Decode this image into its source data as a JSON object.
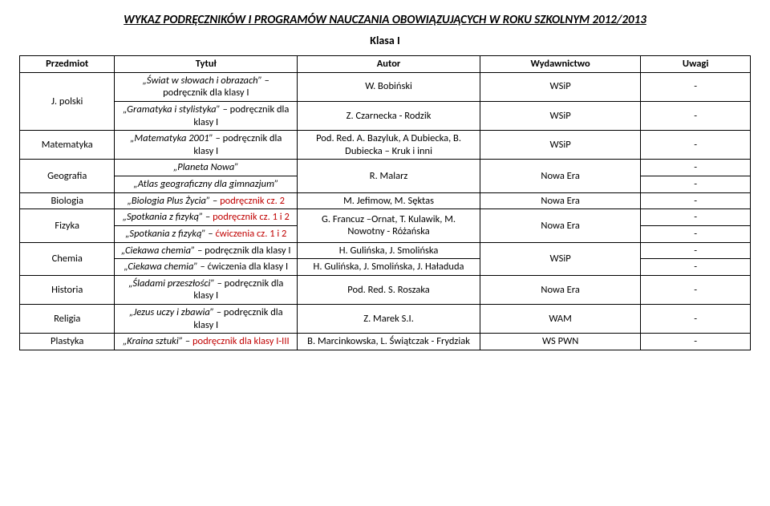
{
  "title": "WYKAZ PODRĘCZNIKÓW I PROGRAMÓW NAUCZANIA OBOWIĄZUJĄCYCH W ROKU SZKOLNYM 2012/2013",
  "subtitle": "Klasa I",
  "headers": {
    "subject": "Przedmiot",
    "title": "Tytuł",
    "author": "Autor",
    "publisher": "Wydawnictwo",
    "notes": "Uwagi"
  },
  "rows": {
    "polski": {
      "subject": "J. polski",
      "t1a": "„Świat w słowach i obrazach” ",
      "t1b": "– podręcznik dla klasy I",
      "a1": "W. Bobiński",
      "p1": "WSiP",
      "n1": "-",
      "t2a": "„Gramatyka i stylistyka”",
      "t2b": " – podręcznik dla klasy I",
      "a2": "Z. Czarnecka - Rodzik",
      "p2": "WSiP",
      "n2": "-"
    },
    "matematyka": {
      "subject": "Matematyka",
      "t1a": "„Matematyka 2001”",
      "t1b": " – podręcznik dla klasy I",
      "a1": "Pod. Red. A. Bazyluk, A Dubiecka, B. Dubiecka – Kruk i inni",
      "p1": "WSiP",
      "n1": "-"
    },
    "geografia": {
      "subject": "Geografia",
      "t1": "„Planeta Nowa”",
      "t2a": "„Atlas geograficzny dla gimnazjum”",
      "a": "R. Malarz",
      "p": "Nowa Era",
      "n1": "-",
      "n2": "-"
    },
    "biologia": {
      "subject": "Biologia",
      "t1a": "„Biologia Plus Życia”",
      "t1b": " – ",
      "t1c": "podręcznik cz. 2",
      "a1": "M. Jefimow, M. Sęktas",
      "p1": "Nowa Era",
      "n1": "-"
    },
    "fizyka": {
      "subject": "Fizyka",
      "t1a": "„Spotkania z fizyką”",
      "t1b": " – ",
      "t1c": "podręcznik cz. 1 i 2",
      "t2a": "„Spotkania z fizyką”",
      "t2b": " – ",
      "t2c": "ćwiczenia cz. 1 i 2",
      "a": "G. Francuz –Ornat, T. Kulawik, M. Nowotny - Różańska",
      "p": "Nowa Era",
      "n1": "-",
      "n2": "-"
    },
    "chemia": {
      "subject": "Chemia",
      "t1a": "„Ciekawa chemia”",
      "t1b": " – podręcznik dla klasy I",
      "t2a": "„Ciekawa chemia”",
      "t2b": " – ćwiczenia dla klasy I",
      "a1": "H. Gulińska, J. Smolińska",
      "a2": "H. Gulińska, J. Smolińska, J. Haładuda",
      "p": "WSiP",
      "n1": "-",
      "n2": "-"
    },
    "historia": {
      "subject": "Historia",
      "t1a": "„Śladami przeszłości”",
      "t1b": " – podręcznik dla klasy I",
      "a1": "Pod. Red. S. Roszaka",
      "p1": "Nowa Era",
      "n1": "-"
    },
    "religia": {
      "subject": "Religia",
      "t1a": "„Jezus uczy i zbawia”",
      "t1b": " – podręcznik dla klasy I",
      "a1": "Z. Marek S.I.",
      "p1": "WAM",
      "n1": "-"
    },
    "plastyka": {
      "subject": "Plastyka",
      "t1a": "„Kraina sztuki”",
      "t1b": " – ",
      "t1c": "podręcznik dla klasy I-III",
      "a1": "B. Marcinkowska, L. Świątczak - Frydziak",
      "p1": "WS PWN",
      "n1": "-"
    }
  }
}
